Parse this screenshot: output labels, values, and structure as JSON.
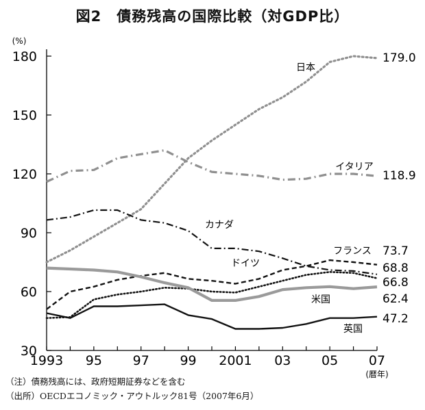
{
  "chart_data": {
    "type": "line",
    "title": "図2　債務残高の国際比較（対GDP比）",
    "ylabel": "(%)",
    "xlabel": "(暦年)",
    "ylim": [
      30,
      180
    ],
    "yticks": [
      30,
      60,
      90,
      120,
      150,
      180
    ],
    "x": [
      1993,
      1994,
      1995,
      1996,
      1997,
      1998,
      1999,
      2000,
      2001,
      2002,
      2003,
      2004,
      2005,
      2006,
      2007
    ],
    "xtick_labels": [
      "1993",
      "95",
      "97",
      "99",
      "2001",
      "03",
      "05",
      "07"
    ],
    "grid": false,
    "series": [
      {
        "name": "日本",
        "end_label": "179.0",
        "style": "dotted-gray",
        "values": [
          75,
          81,
          88,
          95,
          102,
          115,
          128,
          137,
          145,
          153,
          159,
          167,
          177,
          180,
          179
        ]
      },
      {
        "name": "イタリア",
        "end_label": "118.9",
        "style": "dashdot-gray",
        "values": [
          116,
          121.5,
          122,
          128,
          130,
          132,
          126,
          121,
          120,
          119,
          117,
          117.5,
          120,
          120,
          118.9
        ]
      },
      {
        "name": "カナダ",
        "end_label": "68.8",
        "style": "dashdot-black",
        "values": [
          96.5,
          98,
          101.5,
          101.5,
          96.5,
          95,
          91,
          82,
          82,
          80.5,
          77,
          73,
          71,
          70.5,
          68.8
        ]
      },
      {
        "name": "フランス",
        "end_label": "73.7",
        "style": "dashed-black",
        "values": [
          51,
          60,
          62.5,
          66,
          68,
          69.5,
          66.5,
          65.5,
          64,
          66.5,
          71,
          73,
          76,
          75,
          73.7
        ]
      },
      {
        "name": "ドイツ",
        "end_label": "66.8",
        "style": "dotted-black",
        "values": [
          46.5,
          47,
          56,
          58.5,
          60,
          62,
          61.5,
          60,
          59.5,
          62.5,
          65.5,
          68.5,
          70,
          69.5,
          66.8
        ]
      },
      {
        "name": "米国",
        "end_label": "62.4",
        "style": "solid-gray",
        "values": [
          72,
          71.5,
          71,
          70,
          67.5,
          64.5,
          62,
          55.5,
          55.5,
          57.5,
          61,
          62,
          62.5,
          61.5,
          62.4
        ]
      },
      {
        "name": "英国",
        "end_label": "47.2",
        "style": "solid-black",
        "values": [
          49,
          46.5,
          52.5,
          52.5,
          53,
          53.5,
          48,
          46,
          41,
          41,
          41.5,
          43.5,
          46.5,
          46.5,
          47.2
        ]
      }
    ]
  },
  "notes": {
    "note1": "（注）債務残高には、政府短期証券などを含む",
    "note2": "（出所）OECDエコノミック・アウトルック81号（2007年6月）"
  }
}
